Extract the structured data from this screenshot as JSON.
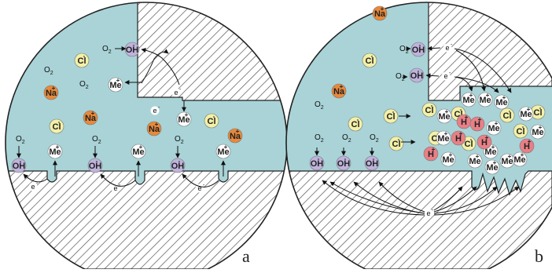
{
  "panels": {
    "a": {
      "label": "a",
      "solution_ions": [
        {
          "kind": "Cl",
          "text": "Cl",
          "charge": "-"
        },
        {
          "kind": "Na",
          "text": "Na",
          "charge": "+"
        },
        {
          "kind": "Me",
          "text": "Me",
          "charge": "+"
        },
        {
          "kind": "OH",
          "text": "OH",
          "charge": "-"
        }
      ],
      "oxygen": "O",
      "oxygen_sub": "2",
      "electron": "e",
      "electron_charge": "-"
    },
    "b": {
      "label": "b",
      "hydrogen": {
        "text": "H",
        "charge": "+"
      }
    }
  },
  "colors": {
    "electrolyte": "#a9d3d7",
    "metal_bg": "#ffffff",
    "hatch": "#444444",
    "cl_fill": "#f3f0a8",
    "na_fill": "#e8893a",
    "oh_fill": "#bfb3dc",
    "me_fill": "#ffffff",
    "h_fill": "#e97f86",
    "outline": "#222222"
  }
}
